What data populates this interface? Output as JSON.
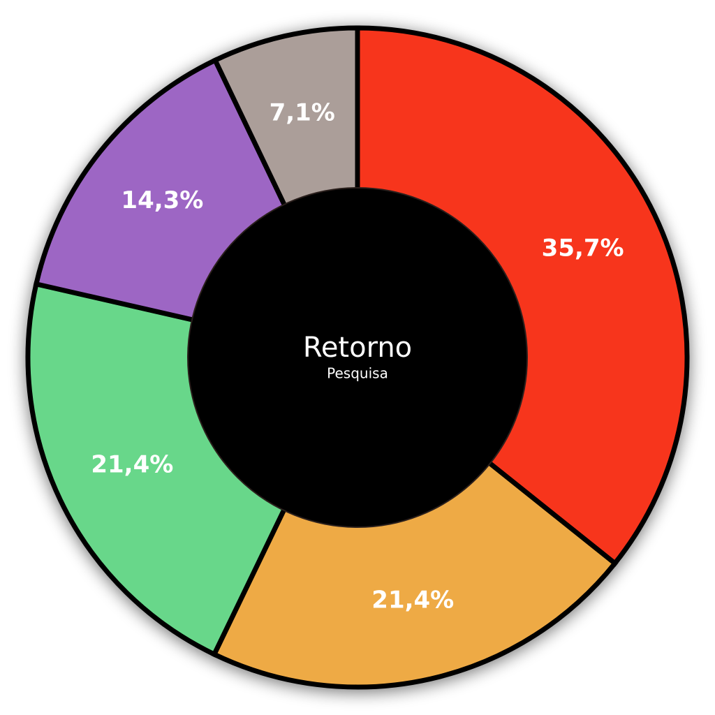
{
  "chart_data": {
    "type": "donut",
    "title": "Retorno",
    "subtitle": "Pesquisa",
    "values": [
      35.7,
      21.4,
      21.4,
      14.3,
      7.1
    ],
    "value_labels": [
      "35,7%",
      "21,4%",
      "21,4%",
      "14,3%",
      "7,1%"
    ],
    "colors": [
      "#f7361f",
      "#eeaa45",
      "#68d78a",
      "#9d66c4",
      "#ab9e99"
    ]
  }
}
